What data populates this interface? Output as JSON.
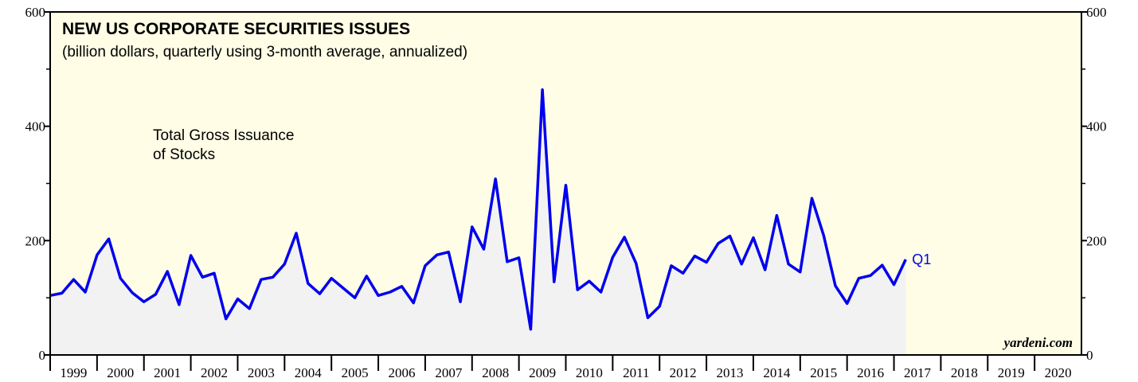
{
  "chart_data": {
    "type": "line",
    "title": "NEW US CORPORATE SECURITIES ISSUES",
    "subtitle": "(billion dollars, quarterly using 3-month average, annualized)",
    "annotation": [
      "Total Gross Issuance",
      "of Stocks"
    ],
    "end_label": "Q1",
    "source": "yardeni.com",
    "x": [
      1999,
      1999.25,
      1999.5,
      1999.75,
      2000,
      2000.25,
      2000.5,
      2000.75,
      2001,
      2001.25,
      2001.5,
      2001.75,
      2002,
      2002.25,
      2002.5,
      2002.75,
      2003,
      2003.25,
      2003.5,
      2003.75,
      2004,
      2004.25,
      2004.5,
      2004.75,
      2005,
      2005.25,
      2005.5,
      2005.75,
      2006,
      2006.25,
      2006.5,
      2006.75,
      2007,
      2007.25,
      2007.5,
      2007.75,
      2008,
      2008.25,
      2008.5,
      2008.75,
      2009,
      2009.25,
      2009.5,
      2009.75,
      2010,
      2010.25,
      2010.5,
      2010.75,
      2011,
      2011.25,
      2011.5,
      2011.75,
      2012,
      2012.25,
      2012.5,
      2012.75,
      2013,
      2013.25,
      2013.5,
      2013.75,
      2014,
      2014.25,
      2014.5,
      2014.75,
      2015,
      2015.25,
      2015.5,
      2015.75,
      2016,
      2016.25,
      2016.5,
      2016.75,
      2017,
      2017.25
    ],
    "series": [
      {
        "name": "Total Gross Issuance of Stocks",
        "color": "#0000ee",
        "values": [
          104,
          108,
          132,
          110,
          175,
          203,
          134,
          109,
          93,
          106,
          146,
          88,
          174,
          136,
          143,
          63,
          98,
          81,
          132,
          136,
          159,
          213,
          125,
          107,
          134,
          117,
          100,
          138,
          104,
          110,
          120,
          91,
          156,
          175,
          180,
          93,
          224,
          185,
          308,
          163,
          170,
          45,
          464,
          128,
          297,
          114,
          129,
          110,
          171,
          206,
          160,
          65,
          85,
          156,
          143,
          173,
          162,
          195,
          208,
          159,
          205,
          149,
          244,
          159,
          145,
          274,
          209,
          121,
          90,
          134,
          139,
          157,
          123,
          167
        ]
      }
    ],
    "fill_color": "#f2f2f2",
    "background": "#fffde6",
    "xlim": [
      1999,
      2021
    ],
    "xticks": [
      1999,
      2000,
      2001,
      2002,
      2003,
      2004,
      2005,
      2006,
      2007,
      2008,
      2009,
      2010,
      2011,
      2012,
      2013,
      2014,
      2015,
      2016,
      2017,
      2018,
      2019,
      2020
    ],
    "ylim": [
      0,
      600
    ],
    "yticks": [
      0,
      200,
      400,
      600
    ],
    "yminor": [
      100,
      300,
      500
    ]
  }
}
